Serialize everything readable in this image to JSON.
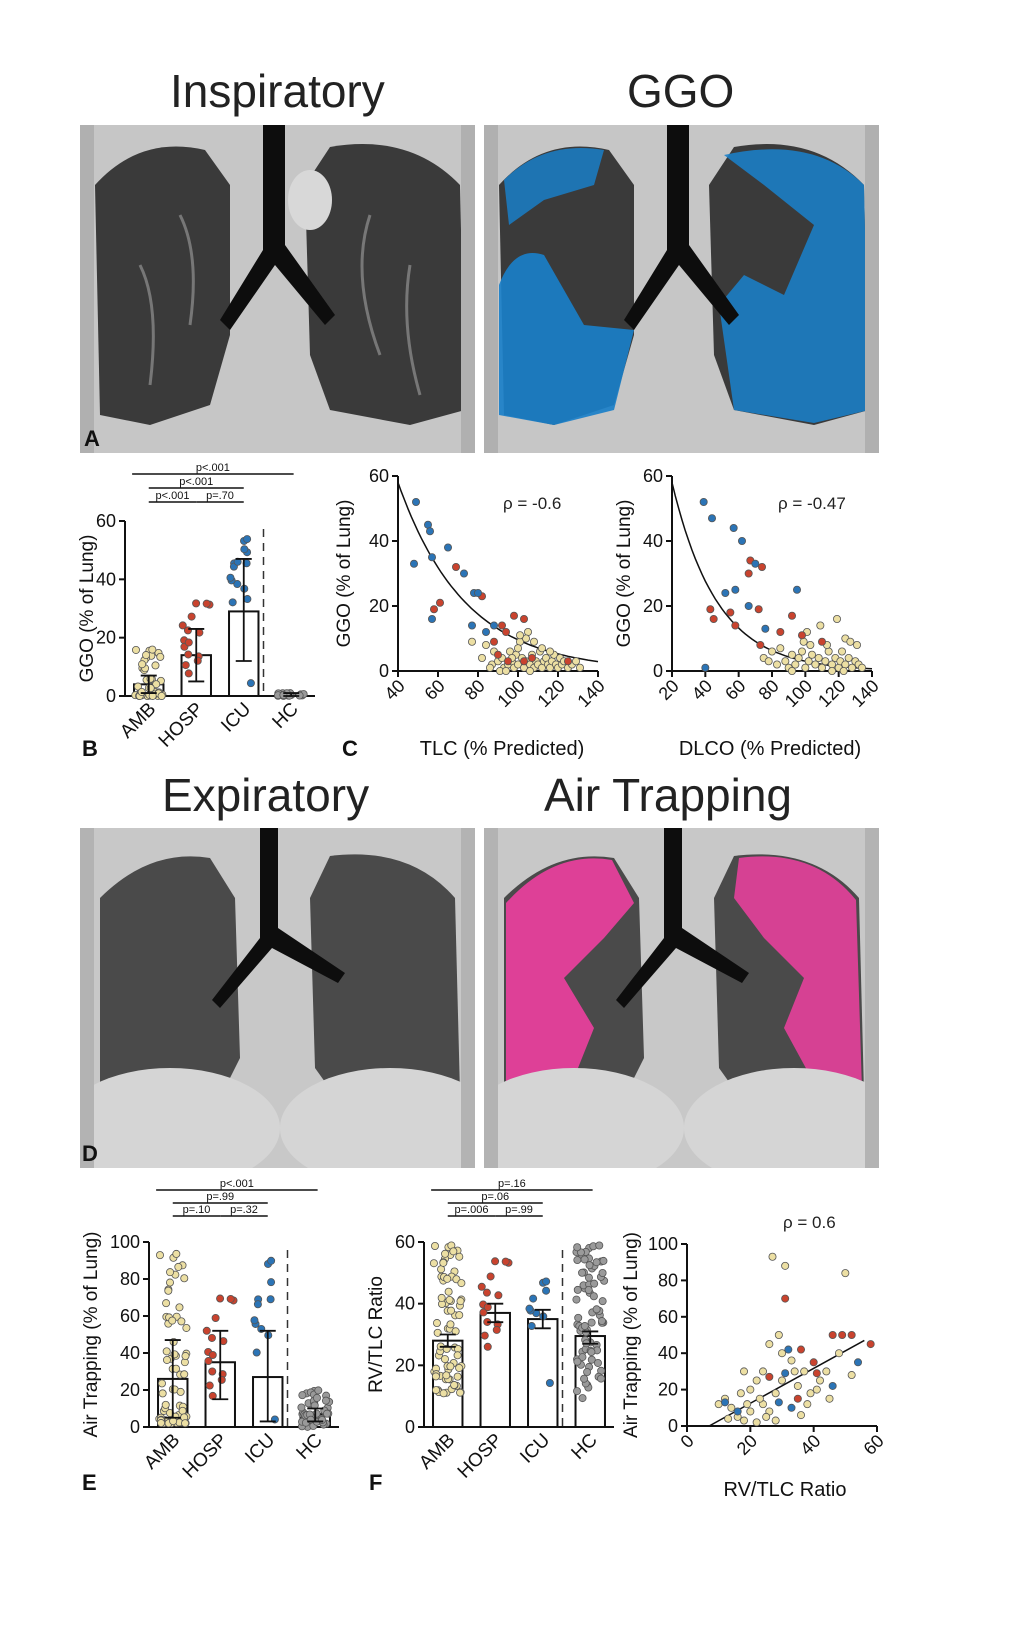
{
  "titles": {
    "inspiratory": "Inspiratory",
    "ggo": "GGO",
    "expiratory": "Expiratory",
    "air_trapping": "Air Trapping"
  },
  "panel_labels": [
    "A",
    "B",
    "C",
    "D",
    "E",
    "F"
  ],
  "colors": {
    "ggo_overlay": "#1a7fc8",
    "air_trapping_overlay": "#ee3fa0",
    "amb": "#ecdfa3",
    "hosp": "#c9432e",
    "icu": "#2b74b6",
    "hc": "#9a9a9a"
  },
  "chart_data": [
    {
      "id": "B",
      "type": "bar",
      "ylabel": "GGO (% of Lung)",
      "categories": [
        "AMB",
        "HOSP",
        "ICU",
        "HC"
      ],
      "values": [
        4,
        14,
        29,
        0.3
      ],
      "err_low": [
        1,
        5,
        12,
        0
      ],
      "err_high": [
        7,
        23,
        47,
        1
      ],
      "ylim": [
        0,
        60
      ],
      "yticks": [
        "0",
        "20",
        "40",
        "60"
      ],
      "brackets": [
        {
          "from": 0,
          "to": 1,
          "text": "p<.001",
          "level": 0
        },
        {
          "from": 1,
          "to": 2,
          "text": "p=.70",
          "level": 0
        },
        {
          "from": 0,
          "to": 2,
          "text": "p<.001",
          "level": 1
        },
        {
          "from": 0,
          "to": 3,
          "text": "p<.001",
          "level": 2
        }
      ]
    },
    {
      "id": "C1",
      "type": "scatter",
      "xlabel": "TLC (% Predicted)",
      "ylabel": "GGO (% of Lung)",
      "annotation": "ρ = -0.6",
      "xlim": [
        40,
        140
      ],
      "ylim": [
        0,
        60
      ],
      "xticks": [
        "40",
        "60",
        "80",
        "100",
        "120",
        "140"
      ],
      "yticks": [
        "0",
        "20",
        "40",
        "60"
      ],
      "curve": {
        "kind": "exp",
        "a": 58,
        "x0": 40,
        "k": 0.03
      },
      "icu": [
        [
          49,
          52
        ],
        [
          55,
          45
        ],
        [
          56,
          43
        ],
        [
          48,
          33
        ],
        [
          57,
          35
        ],
        [
          65,
          38
        ],
        [
          73,
          30
        ],
        [
          78,
          24
        ],
        [
          80,
          24
        ],
        [
          84,
          12
        ],
        [
          88,
          14
        ],
        [
          57,
          16
        ],
        [
          77,
          14
        ]
      ],
      "hosp": [
        [
          61,
          21
        ],
        [
          58,
          19
        ],
        [
          69,
          32
        ],
        [
          82,
          23
        ],
        [
          88,
          9
        ],
        [
          92,
          14
        ],
        [
          94,
          12
        ],
        [
          98,
          17
        ],
        [
          103,
          16
        ],
        [
          90,
          5
        ],
        [
          95,
          3
        ],
        [
          107,
          4
        ],
        [
          103,
          3
        ],
        [
          125,
          3
        ]
      ],
      "amb": [
        [
          77,
          9
        ],
        [
          82,
          4
        ],
        [
          84,
          8
        ],
        [
          87,
          2
        ],
        [
          88,
          6
        ],
        [
          90,
          3
        ],
        [
          92,
          4
        ],
        [
          93,
          1
        ],
        [
          95,
          2
        ],
        [
          96,
          6
        ],
        [
          97,
          3
        ],
        [
          98,
          1
        ],
        [
          99,
          5
        ],
        [
          100,
          2
        ],
        [
          101,
          9
        ],
        [
          102,
          4
        ],
        [
          103,
          1
        ],
        [
          104,
          3
        ],
        [
          105,
          12
        ],
        [
          106,
          2
        ],
        [
          107,
          5
        ],
        [
          108,
          1
        ],
        [
          109,
          3
        ],
        [
          110,
          2
        ],
        [
          111,
          6
        ],
        [
          112,
          1
        ],
        [
          113,
          3
        ],
        [
          114,
          4
        ],
        [
          115,
          2
        ],
        [
          116,
          1
        ],
        [
          117,
          3
        ],
        [
          118,
          5
        ],
        [
          119,
          2
        ],
        [
          120,
          1
        ],
        [
          121,
          4
        ],
        [
          122,
          2
        ],
        [
          123,
          3
        ],
        [
          125,
          1
        ],
        [
          127,
          2
        ],
        [
          129,
          3
        ],
        [
          131,
          1
        ],
        [
          86,
          1
        ],
        [
          91,
          0
        ],
        [
          94,
          0
        ],
        [
          97,
          4
        ],
        [
          100,
          7
        ],
        [
          104,
          10
        ],
        [
          108,
          9
        ],
        [
          112,
          7
        ],
        [
          116,
          6
        ],
        [
          101,
          11
        ],
        [
          106,
          0
        ]
      ]
    },
    {
      "id": "C2",
      "type": "scatter",
      "xlabel": "DLCO (% Predicted)",
      "ylabel": "GGO (% of Lung)",
      "annotation": "ρ = -0.47",
      "xlim": [
        20,
        140
      ],
      "ylim": [
        0,
        60
      ],
      "xticks": [
        "20",
        "40",
        "60",
        "80",
        "100",
        "120",
        "140"
      ],
      "yticks": [
        "0",
        "20",
        "40",
        "60"
      ],
      "curve": {
        "kind": "exp",
        "a": 58,
        "x0": 20,
        "k": 0.037
      },
      "icu": [
        [
          39,
          52
        ],
        [
          44,
          47
        ],
        [
          57,
          44
        ],
        [
          62,
          40
        ],
        [
          70,
          33
        ],
        [
          58,
          25
        ],
        [
          52,
          24
        ],
        [
          95,
          25
        ],
        [
          76,
          13
        ],
        [
          40,
          1
        ],
        [
          66,
          20
        ]
      ],
      "hosp": [
        [
          43,
          19
        ],
        [
          45,
          16
        ],
        [
          55,
          18
        ],
        [
          58,
          14
        ],
        [
          66,
          30
        ],
        [
          67,
          34
        ],
        [
          74,
          32
        ],
        [
          72,
          19
        ],
        [
          85,
          12
        ],
        [
          92,
          17
        ],
        [
          98,
          11
        ],
        [
          110,
          9
        ],
        [
          73,
          8
        ]
      ],
      "amb": [
        [
          75,
          4
        ],
        [
          78,
          3
        ],
        [
          80,
          6
        ],
        [
          83,
          2
        ],
        [
          85,
          7
        ],
        [
          88,
          3
        ],
        [
          90,
          1
        ],
        [
          92,
          5
        ],
        [
          94,
          2
        ],
        [
          96,
          4
        ],
        [
          98,
          6
        ],
        [
          100,
          1
        ],
        [
          102,
          3
        ],
        [
          104,
          5
        ],
        [
          106,
          2
        ],
        [
          108,
          4
        ],
        [
          110,
          1
        ],
        [
          112,
          3
        ],
        [
          114,
          6
        ],
        [
          116,
          2
        ],
        [
          118,
          4
        ],
        [
          120,
          1
        ],
        [
          121,
          3
        ],
        [
          122,
          6
        ],
        [
          124,
          2
        ],
        [
          126,
          4
        ],
        [
          128,
          1
        ],
        [
          130,
          3
        ],
        [
          132,
          2
        ],
        [
          134,
          1
        ],
        [
          109,
          14
        ],
        [
          119,
          16
        ],
        [
          124,
          10
        ],
        [
          127,
          9
        ],
        [
          131,
          8
        ],
        [
          99,
          9
        ],
        [
          103,
          8
        ],
        [
          113,
          8
        ],
        [
          92,
          0
        ],
        [
          116,
          0
        ],
        [
          123,
          0
        ],
        [
          101,
          12
        ]
      ]
    },
    {
      "id": "E",
      "type": "bar",
      "ylabel": "Air Trapping (% of Lung)",
      "categories": [
        "AMB",
        "HOSP",
        "ICU",
        "HC"
      ],
      "values": [
        26,
        35,
        27,
        7
      ],
      "err_low": [
        5,
        15,
        3,
        3
      ],
      "err_high": [
        47,
        52,
        52,
        10
      ],
      "ylim": [
        0,
        100
      ],
      "yticks": [
        "0",
        "20",
        "40",
        "60",
        "80",
        "100"
      ],
      "brackets": [
        {
          "from": 0,
          "to": 1,
          "text": "p=.10",
          "level": 0
        },
        {
          "from": 1,
          "to": 2,
          "text": "p=.32",
          "level": 0
        },
        {
          "from": 0,
          "to": 2,
          "text": "p=.99",
          "level": 1
        },
        {
          "from": 0,
          "to": 3,
          "text": "p<.001",
          "level": 2
        }
      ]
    },
    {
      "id": "F",
      "type": "bar",
      "ylabel": "RV/TLC Ratio",
      "categories": [
        "AMB",
        "HOSP",
        "ICU",
        "HC"
      ],
      "values": [
        28,
        37,
        35,
        29.5
      ],
      "err_low": [
        26,
        34,
        32,
        27
      ],
      "err_high": [
        30,
        40,
        38,
        31
      ],
      "ylim": [
        0,
        60
      ],
      "yticks": [
        "0",
        "20",
        "40",
        "60"
      ],
      "brackets": [
        {
          "from": 0,
          "to": 1,
          "text": "p=.006",
          "level": 0
        },
        {
          "from": 1,
          "to": 2,
          "text": "p=.99",
          "level": 0
        },
        {
          "from": 0,
          "to": 2,
          "text": "p=.06",
          "level": 1
        },
        {
          "from": 0,
          "to": 3,
          "text": "p=.16",
          "level": 2
        }
      ]
    },
    {
      "id": "F2",
      "type": "scatter",
      "xlabel": "RV/TLC Ratio",
      "ylabel": "Air Trapping (% of Lung)",
      "annotation": "ρ = 0.6",
      "xlim": [
        0,
        60
      ],
      "ylim": [
        0,
        100
      ],
      "xticks": [
        "0",
        "20",
        "40",
        "60"
      ],
      "yticks": [
        "0",
        "20",
        "40",
        "60",
        "80",
        "100"
      ],
      "curve": {
        "kind": "line",
        "x1": 7,
        "y1": 0,
        "x2": 56,
        "y2": 47
      },
      "icu": [
        [
          32,
          42
        ],
        [
          31,
          29
        ],
        [
          33,
          10
        ],
        [
          29,
          13
        ],
        [
          46,
          22
        ],
        [
          54,
          35
        ],
        [
          16,
          8
        ],
        [
          12,
          13
        ]
      ],
      "hosp": [
        [
          31,
          70
        ],
        [
          26,
          27
        ],
        [
          36,
          42
        ],
        [
          40,
          35
        ],
        [
          41,
          29
        ],
        [
          46,
          50
        ],
        [
          49,
          50
        ],
        [
          52,
          50
        ],
        [
          58,
          45
        ],
        [
          35,
          15
        ]
      ],
      "amb": [
        [
          27,
          93
        ],
        [
          31,
          88
        ],
        [
          29,
          50
        ],
        [
          18,
          30
        ],
        [
          12,
          15
        ],
        [
          10,
          12
        ],
        [
          14,
          10
        ],
        [
          16,
          5
        ],
        [
          18,
          3
        ],
        [
          20,
          20
        ],
        [
          22,
          25
        ],
        [
          24,
          12
        ],
        [
          26,
          8
        ],
        [
          28,
          18
        ],
        [
          30,
          40
        ],
        [
          33,
          36
        ],
        [
          35,
          22
        ],
        [
          37,
          30
        ],
        [
          39,
          18
        ],
        [
          42,
          25
        ],
        [
          44,
          30
        ],
        [
          48,
          40
        ],
        [
          50,
          84
        ],
        [
          20,
          8
        ],
        [
          22,
          2
        ],
        [
          25,
          5
        ],
        [
          28,
          3
        ],
        [
          30,
          25
        ],
        [
          17,
          18
        ],
        [
          13,
          4
        ],
        [
          23,
          15
        ],
        [
          26,
          45
        ],
        [
          34,
          30
        ],
        [
          38,
          12
        ],
        [
          41,
          20
        ],
        [
          45,
          15
        ],
        [
          52,
          28
        ],
        [
          19,
          12
        ],
        [
          24,
          30
        ],
        [
          36,
          6
        ]
      ]
    }
  ]
}
